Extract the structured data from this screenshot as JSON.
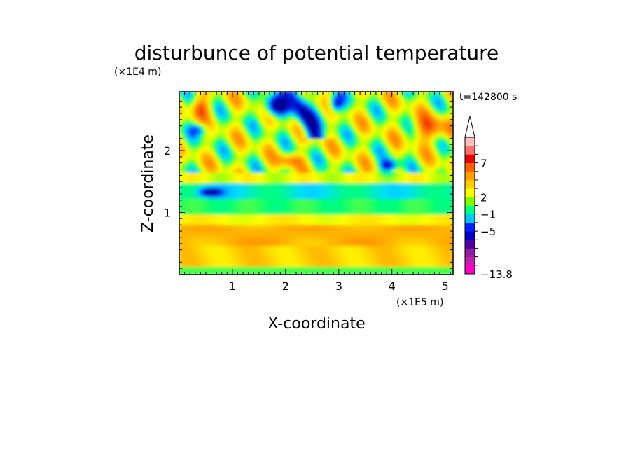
{
  "chart_data": {
    "type": "heatmap",
    "title": "disturbunce of potential temperature",
    "xlabel": "X-coordinate",
    "ylabel": "Z-coordinate",
    "x_unit": "(×1E5 m)",
    "y_unit": "(×1E4 m)",
    "time_label": "t=142800 s",
    "xlim": [
      0,
      5.15
    ],
    "ylim": [
      0,
      2.95
    ],
    "xticks": [
      1,
      2,
      3,
      4,
      5
    ],
    "yticks": [
      1,
      2
    ],
    "grid": false,
    "colorbar": {
      "labels": [
        {
          "value": 7,
          "text": "7"
        },
        {
          "value": 2,
          "text": "2"
        },
        {
          "value": -1,
          "text": "−1"
        },
        {
          "value": -5,
          "text": "−5"
        },
        {
          "value": -13.8,
          "text": "−13.8"
        }
      ],
      "extend": "max",
      "colors": [
        "#ff00c8",
        "#c020b0",
        "#9020a0",
        "#5000a0",
        "#0000c0",
        "#0020ff",
        "#00c8ff",
        "#00ff80",
        "#80ff00",
        "#ffff00",
        "#ffd000",
        "#ffa000",
        "#ff6000",
        "#e80000",
        "#ff7070",
        "#ffc0c0"
      ]
    }
  }
}
